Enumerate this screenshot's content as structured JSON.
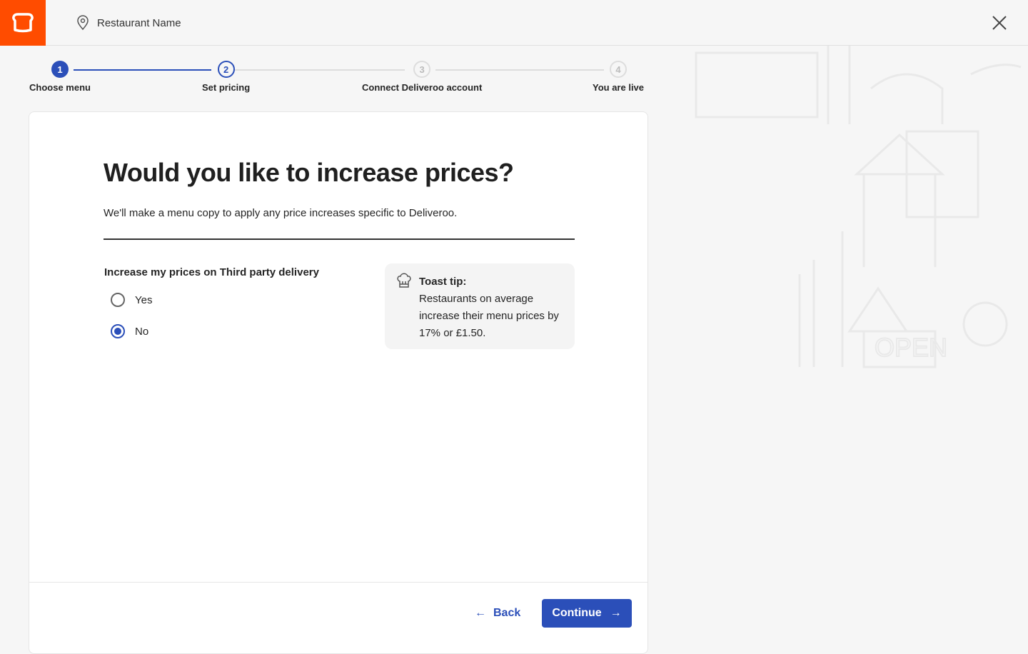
{
  "header": {
    "restaurant_name": "Restaurant Name",
    "brand_color": "#ff4c00"
  },
  "stepper": {
    "steps": [
      {
        "number": "1",
        "label": "Choose menu",
        "state": "complete"
      },
      {
        "number": "2",
        "label": "Set pricing",
        "state": "current"
      },
      {
        "number": "3",
        "label": "Connect Deliveroo account",
        "state": "upcoming"
      },
      {
        "number": "4",
        "label": "You are live",
        "state": "upcoming"
      }
    ],
    "accent": "#2b4fb9"
  },
  "main": {
    "title": "Would you like to increase prices?",
    "subtitle": "We'll make a menu copy to apply any price increases specific to Deliveroo.",
    "question": "Increase my prices on Third party delivery",
    "options": [
      {
        "label": "Yes",
        "selected": false
      },
      {
        "label": "No",
        "selected": true
      }
    ],
    "tip": {
      "title": "Toast tip:",
      "text": "Restaurants on average increase their menu prices by 17% or £1.50."
    }
  },
  "footer": {
    "back_label": "Back",
    "continue_label": "Continue"
  }
}
